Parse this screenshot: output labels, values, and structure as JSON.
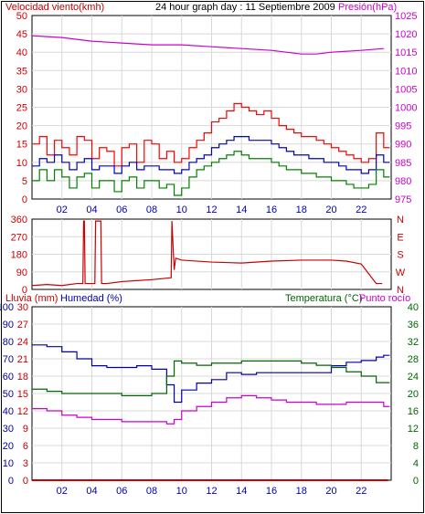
{
  "chart_data": [
    {
      "type": "line",
      "title": "24 hour graph day : 11 Septiembre 2009",
      "ylabel_left": "Velocidad viento(kmh)",
      "ylabel_right": "Presión(hPa)",
      "ylim_left": [
        0,
        50
      ],
      "yticks_left": [
        "0",
        "5",
        "10",
        "15",
        "20",
        "25",
        "30",
        "35",
        "40",
        "45",
        "50"
      ],
      "ylim_right": [
        975,
        1025
      ],
      "yticks_right": [
        "975",
        "980",
        "985",
        "990",
        "995",
        "1000",
        "1005",
        "1010",
        "1015",
        "1020",
        "1025"
      ],
      "xticks": [
        "02",
        "04",
        "06",
        "08",
        "10",
        "12",
        "14",
        "16",
        "18",
        "20",
        "22"
      ],
      "grid": true,
      "series": [
        {
          "role": "gust",
          "color": "#ff0000",
          "x": [
            0,
            0.5,
            1,
            1.5,
            2,
            2.5,
            3,
            3.5,
            4,
            4.5,
            5,
            5.5,
            6,
            6.5,
            7,
            7.5,
            8,
            8.5,
            9,
            9.5,
            10,
            10.5,
            11,
            11.5,
            12,
            12.5,
            13,
            13.5,
            14,
            14.5,
            15,
            15.5,
            16,
            16.5,
            17,
            17.5,
            18,
            18.5,
            19,
            19.5,
            20,
            20.5,
            21,
            21.5,
            22,
            22.5,
            23,
            23.5
          ],
          "values": [
            15,
            17,
            12,
            16,
            14,
            12,
            17,
            16,
            11,
            14,
            13,
            9,
            14,
            15,
            10,
            16,
            15,
            11,
            13,
            10,
            11,
            14,
            16,
            18,
            21,
            22,
            24,
            26,
            25,
            24,
            23,
            24,
            22,
            20,
            19,
            18,
            17,
            17,
            16,
            15,
            14,
            13,
            12,
            11,
            10,
            11,
            18,
            14
          ]
        },
        {
          "role": "avg",
          "color": "#0000cc",
          "x": [
            0,
            0.5,
            1,
            1.5,
            2,
            2.5,
            3,
            3.5,
            4,
            4.5,
            5,
            5.5,
            6,
            6.5,
            7,
            7.5,
            8,
            8.5,
            9,
            9.5,
            10,
            10.5,
            11,
            11.5,
            12,
            12.5,
            13,
            13.5,
            14,
            14.5,
            15,
            15.5,
            16,
            16.5,
            17,
            17.5,
            18,
            18.5,
            19,
            19.5,
            20,
            20.5,
            21,
            21.5,
            22,
            22.5,
            23,
            23.5
          ],
          "values": [
            9,
            11,
            10,
            12,
            10,
            8,
            10,
            11,
            8,
            9,
            9,
            7,
            9,
            10,
            8,
            9,
            9,
            8,
            8,
            7,
            8,
            10,
            11,
            12,
            14,
            15,
            16,
            17,
            17,
            16,
            16,
            16,
            15,
            14,
            13,
            12,
            12,
            11,
            11,
            10,
            10,
            9,
            8,
            8,
            7,
            8,
            12,
            10
          ]
        },
        {
          "role": "wind",
          "color": "#008000",
          "x": [
            0,
            0.5,
            1,
            1.5,
            2,
            2.5,
            3,
            3.5,
            4,
            4.5,
            5,
            5.5,
            6,
            6.5,
            7,
            7.5,
            8,
            8.5,
            9,
            9.5,
            10,
            10.5,
            11,
            11.5,
            12,
            12.5,
            13,
            13.5,
            14,
            14.5,
            15,
            15.5,
            16,
            16.5,
            17,
            17.5,
            18,
            18.5,
            19,
            19.5,
            20,
            20.5,
            21,
            21.5,
            22,
            22.5,
            23,
            23.5
          ],
          "values": [
            5,
            8,
            5,
            8,
            6,
            3,
            6,
            7,
            3,
            5,
            5,
            2,
            5,
            6,
            3,
            5,
            5,
            3,
            4,
            1,
            3,
            6,
            8,
            9,
            10,
            11,
            12,
            13,
            12,
            11,
            11,
            11,
            10,
            9,
            8,
            8,
            7,
            7,
            6,
            6,
            5,
            5,
            4,
            3,
            3,
            4,
            8,
            6
          ]
        },
        {
          "role": "pressure",
          "axis": "right",
          "color": "#cc00cc",
          "x": [
            0,
            2,
            4,
            6,
            8,
            10,
            12,
            14,
            16,
            18,
            19,
            20,
            22,
            23.5
          ],
          "values": [
            1019.5,
            1019,
            1018,
            1017.5,
            1017,
            1017,
            1016.5,
            1016,
            1015.5,
            1014.5,
            1014.5,
            1015,
            1015.5,
            1016
          ]
        }
      ]
    },
    {
      "type": "line",
      "yticks_left": [
        "0",
        "90",
        "180",
        "270",
        "360"
      ],
      "ylim_left": [
        0,
        360
      ],
      "yticks_right": [
        "N",
        "W",
        "S",
        "E",
        "N"
      ],
      "xticks": [
        "02",
        "04",
        "06",
        "08",
        "10",
        "12",
        "14",
        "16",
        "18",
        "20",
        "22"
      ],
      "grid": true,
      "series": [
        {
          "role": "direction",
          "color": "#cc0000",
          "x": [
            0,
            1,
            2,
            3,
            3.4,
            3.45,
            3.5,
            3.55,
            4.2,
            4.25,
            4.6,
            4.65,
            5,
            6,
            7,
            8,
            9.3,
            9.35,
            9.5,
            9.6,
            10,
            12,
            14,
            16,
            18,
            20,
            21,
            22,
            22.5,
            23,
            23.4
          ],
          "values": [
            20,
            25,
            20,
            30,
            30,
            350,
            350,
            30,
            30,
            350,
            350,
            30,
            30,
            40,
            45,
            50,
            60,
            350,
            100,
            160,
            150,
            140,
            135,
            145,
            150,
            150,
            145,
            130,
            80,
            30,
            30
          ]
        }
      ]
    },
    {
      "type": "line",
      "ylabel_left_1": "Lluvia (mm)",
      "ylabel_left_2": "Humedad (%)",
      "ylabel_right_1": "Temperatura (°C)",
      "ylabel_right_2": "Punto rocío",
      "yticks_rain": [
        "0",
        "3",
        "6",
        "9",
        "12",
        "15",
        "18",
        "21",
        "24",
        "27",
        "30"
      ],
      "yticks_hum": [
        "0",
        "10",
        "20",
        "30",
        "40",
        "50",
        "60",
        "70",
        "80",
        "90",
        "100"
      ],
      "yticks_temp": [
        "0",
        "4",
        "8",
        "12",
        "16",
        "20",
        "24",
        "28",
        "32",
        "36",
        "40"
      ],
      "ylim_rain": [
        0,
        30
      ],
      "ylim_hum": [
        0,
        100
      ],
      "ylim_temp": [
        0,
        40
      ],
      "xticks": [
        "02",
        "04",
        "06",
        "08",
        "10",
        "12",
        "14",
        "16",
        "18",
        "20",
        "22"
      ],
      "grid": true,
      "series": [
        {
          "role": "rain",
          "axis": "rain",
          "color": "#cc0000",
          "x": [
            0,
            23.8
          ],
          "values": [
            0,
            0
          ]
        },
        {
          "role": "humidity",
          "axis": "hum",
          "color": "#0000aa",
          "x": [
            0,
            1,
            2,
            3,
            4,
            5,
            6,
            7,
            8,
            9,
            9.5,
            10,
            11,
            12,
            13,
            14,
            15,
            16,
            17,
            18,
            19,
            20,
            21,
            22,
            23,
            23.5
          ],
          "values": [
            78,
            77,
            74,
            70,
            66,
            65,
            65,
            66,
            64,
            55,
            45,
            52,
            56,
            58,
            62,
            61,
            62,
            62,
            62,
            62,
            62,
            66,
            68,
            69,
            71,
            72
          ]
        },
        {
          "role": "temperature",
          "axis": "temp",
          "color": "#006600",
          "x": [
            0,
            1,
            2,
            3,
            4,
            5,
            6,
            7,
            8,
            9,
            9.5,
            10,
            11,
            12,
            13,
            14,
            15,
            16,
            17,
            18,
            19,
            20,
            21,
            22,
            23,
            23.5
          ],
          "values": [
            21,
            20.5,
            20,
            20,
            20,
            20,
            19.5,
            19.5,
            20,
            24,
            27.5,
            27,
            26.5,
            27,
            27,
            27.5,
            27.5,
            27.5,
            27.5,
            27,
            26.5,
            26,
            25,
            24,
            22.5,
            22.5
          ]
        },
        {
          "role": "dewpoint",
          "axis": "temp",
          "color": "#cc00cc",
          "x": [
            0,
            1,
            2,
            3,
            4,
            5,
            6,
            7,
            8,
            9,
            9.5,
            10,
            11,
            12,
            13,
            14,
            15,
            16,
            17,
            18,
            19,
            20,
            21,
            22,
            23,
            23.5
          ],
          "values": [
            16.5,
            16,
            15,
            14.5,
            14,
            14,
            13.5,
            13.5,
            13.5,
            13,
            14,
            16,
            17,
            18,
            19,
            19.5,
            19,
            18.5,
            18,
            18,
            17.5,
            17.5,
            18,
            18,
            18,
            17
          ]
        }
      ]
    }
  ]
}
